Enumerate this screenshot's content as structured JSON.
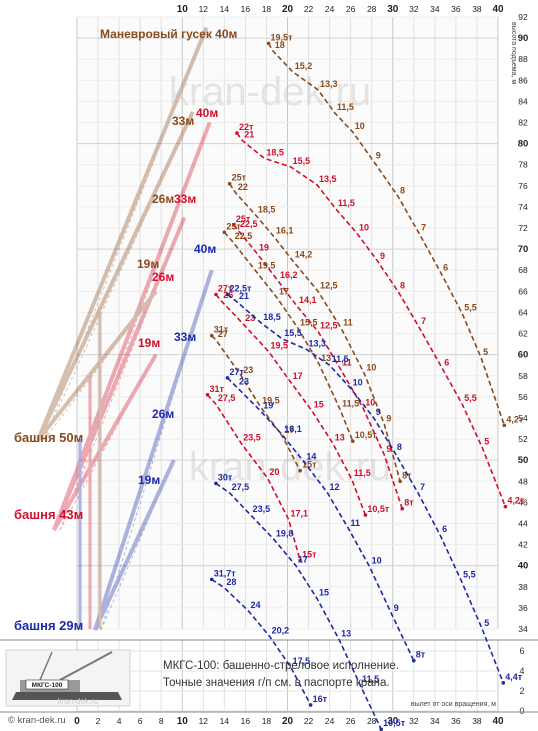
{
  "chart_data": {
    "type": "line",
    "title": "",
    "x_axis": {
      "label": "вылет от оси вращения, м",
      "ticks": [
        0,
        2,
        4,
        6,
        8,
        10,
        12,
        14,
        16,
        18,
        20,
        22,
        24,
        26,
        28,
        30,
        32,
        34,
        36,
        38,
        40
      ],
      "range": [
        0,
        40
      ]
    },
    "y_axis": {
      "label": "высота подъема, м",
      "ticks": [
        34,
        36,
        38,
        40,
        42,
        44,
        46,
        48,
        50,
        52,
        54,
        56,
        58,
        60,
        62,
        64,
        66,
        68,
        70,
        72,
        74,
        76,
        78,
        80,
        82,
        84,
        86,
        88,
        90,
        92
      ],
      "range": [
        34,
        92
      ]
    },
    "lower_axis": {
      "ticks": [
        0,
        2,
        4,
        6
      ]
    },
    "colors": {
      "brown": "#8a4a1c",
      "red": "#d0102a",
      "blue": "#1c2aa6"
    },
    "configs": [
      {
        "label": "Маневровый гусек 40м",
        "color": "brown",
        "points": [
          {
            "x": 18.2,
            "y": 89.5,
            "t": "19,5т"
          },
          {
            "x": 18.6,
            "y": 88.8,
            "t": "18"
          },
          {
            "x": 20.5,
            "y": 86.8,
            "t": "15,2"
          },
          {
            "x": 22.9,
            "y": 85.1,
            "t": "13,3"
          },
          {
            "x": 24.5,
            "y": 82.9,
            "t": "11,5"
          },
          {
            "x": 26.2,
            "y": 81.1,
            "t": "10"
          },
          {
            "x": 28.2,
            "y": 78.3,
            "t": "9"
          },
          {
            "x": 30.5,
            "y": 75.0,
            "t": "8"
          },
          {
            "x": 32.5,
            "y": 71.5,
            "t": "7"
          },
          {
            "x": 34.6,
            "y": 67.7,
            "t": "6"
          },
          {
            "x": 36.6,
            "y": 63.9,
            "t": "5,5"
          },
          {
            "x": 38.4,
            "y": 59.7,
            "t": "5"
          },
          {
            "x": 40.6,
            "y": 53.3,
            "t": "4,2т"
          }
        ]
      },
      {
        "label": "40м",
        "color": "red",
        "points": [
          {
            "x": 15.2,
            "y": 81.0,
            "t": "22т"
          },
          {
            "x": 15.7,
            "y": 80.3,
            "t": "21"
          },
          {
            "x": 17.8,
            "y": 78.6,
            "t": "18,5"
          },
          {
            "x": 20.3,
            "y": 77.8,
            "t": "15,5"
          },
          {
            "x": 22.8,
            "y": 76.1,
            "t": "13,5"
          },
          {
            "x": 24.6,
            "y": 73.8,
            "t": "11,5"
          },
          {
            "x": 26.6,
            "y": 71.5,
            "t": "10"
          },
          {
            "x": 28.6,
            "y": 68.8,
            "t": "9"
          },
          {
            "x": 30.5,
            "y": 66.0,
            "t": "8"
          },
          {
            "x": 32.5,
            "y": 62.6,
            "t": "7"
          },
          {
            "x": 34.7,
            "y": 58.7,
            "t": "6"
          },
          {
            "x": 36.6,
            "y": 55.3,
            "t": "5,5"
          },
          {
            "x": 38.5,
            "y": 51.2,
            "t": "5"
          },
          {
            "x": 40.7,
            "y": 45.6,
            "t": "4,2т"
          }
        ]
      },
      {
        "label": "33м",
        "color": "brown",
        "points": [
          {
            "x": 14.5,
            "y": 76.2,
            "t": "25т"
          },
          {
            "x": 15.1,
            "y": 75.3,
            "t": "22"
          },
          {
            "x": 17.0,
            "y": 73.2,
            "t": "18,5"
          },
          {
            "x": 18.7,
            "y": 71.2,
            "t": "16,1"
          },
          {
            "x": 20.5,
            "y": 68.9,
            "t": "14,2"
          },
          {
            "x": 22.9,
            "y": 66.0,
            "t": "12,5"
          },
          {
            "x": 25.1,
            "y": 62.5,
            "t": "11"
          },
          {
            "x": 27.3,
            "y": 58.2,
            "t": "10"
          },
          {
            "x": 29.2,
            "y": 53.4,
            "t": "9"
          },
          {
            "x": 30.7,
            "y": 48.0,
            "t": "8т"
          }
        ]
      },
      {
        "label": "33м",
        "color": "red",
        "points": [
          {
            "x": 14.9,
            "y": 72.3,
            "t": "25т"
          },
          {
            "x": 15.3,
            "y": 71.8,
            "t": "22,5"
          },
          {
            "x": 17.1,
            "y": 69.6,
            "t": "19"
          },
          {
            "x": 19.1,
            "y": 67.0,
            "t": "16,2"
          },
          {
            "x": 20.9,
            "y": 64.6,
            "t": "14,1"
          },
          {
            "x": 22.9,
            "y": 62.2,
            "t": "12,5"
          },
          {
            "x": 25.0,
            "y": 58.7,
            "t": "11"
          },
          {
            "x": 27.2,
            "y": 54.9,
            "t": "10"
          },
          {
            "x": 29.2,
            "y": 50.5,
            "t": "9"
          },
          {
            "x": 30.9,
            "y": 45.4,
            "t": "8т"
          }
        ]
      },
      {
        "label": "26м",
        "color": "brown",
        "points": [
          {
            "x": 14.0,
            "y": 71.6,
            "t": "25т"
          },
          {
            "x": 14.8,
            "y": 70.7,
            "t": "22,5"
          },
          {
            "x": 17.0,
            "y": 67.9,
            "t": "19,5"
          },
          {
            "x": 19.0,
            "y": 65.4,
            "t": "17"
          },
          {
            "x": 21.0,
            "y": 62.5,
            "t": "15,5"
          },
          {
            "x": 23.0,
            "y": 59.1,
            "t": "13"
          },
          {
            "x": 25.0,
            "y": 54.8,
            "t": "11,5"
          },
          {
            "x": 26.2,
            "y": 51.8,
            "t": "10,5т"
          }
        ]
      },
      {
        "label": "26м",
        "color": "red",
        "points": [
          {
            "x": 13.2,
            "y": 65.7,
            "t": "27т"
          },
          {
            "x": 13.7,
            "y": 65.1,
            "t": "26"
          },
          {
            "x": 15.8,
            "y": 62.9,
            "t": "23"
          },
          {
            "x": 18.2,
            "y": 60.3,
            "t": "19,5"
          },
          {
            "x": 20.3,
            "y": 57.4,
            "t": "17"
          },
          {
            "x": 22.3,
            "y": 54.7,
            "t": "15"
          },
          {
            "x": 24.3,
            "y": 51.6,
            "t": "13"
          },
          {
            "x": 26.1,
            "y": 48.2,
            "t": "11,5"
          },
          {
            "x": 27.4,
            "y": 44.8,
            "t": "10,5т"
          }
        ]
      },
      {
        "label": "19м",
        "color": "brown",
        "points": [
          {
            "x": 12.8,
            "y": 61.8,
            "t": "31т"
          },
          {
            "x": 13.2,
            "y": 61.4,
            "t": "27"
          },
          {
            "x": 15.6,
            "y": 58.0,
            "t": "23"
          },
          {
            "x": 17.4,
            "y": 55.1,
            "t": "19,5"
          },
          {
            "x": 19.5,
            "y": 52.3,
            "t": "17"
          },
          {
            "x": 21.2,
            "y": 49.0,
            "t": "15т"
          }
        ]
      },
      {
        "label": "19м",
        "color": "red",
        "points": [
          {
            "x": 12.4,
            "y": 56.2,
            "t": "31т"
          },
          {
            "x": 13.2,
            "y": 55.3,
            "t": "27,5"
          },
          {
            "x": 15.6,
            "y": 51.6,
            "t": "23,5"
          },
          {
            "x": 18.1,
            "y": 48.3,
            "t": "20"
          },
          {
            "x": 20.1,
            "y": 44.4,
            "t": "17,1"
          },
          {
            "x": 21.2,
            "y": 40.5,
            "t": "15т"
          }
        ]
      },
      {
        "label": "40м",
        "color": "blue",
        "points": [
          {
            "x": 14.3,
            "y": 65.7,
            "t": "22,5т"
          },
          {
            "x": 15.2,
            "y": 65.0,
            "t": "21"
          },
          {
            "x": 17.5,
            "y": 63.0,
            "t": "18,5"
          },
          {
            "x": 19.5,
            "y": 61.5,
            "t": "15,5"
          },
          {
            "x": 21.8,
            "y": 60.5,
            "t": "13,3"
          },
          {
            "x": 24.0,
            "y": 59.0,
            "t": "11,5"
          },
          {
            "x": 26.0,
            "y": 56.8,
            "t": "10"
          },
          {
            "x": 28.2,
            "y": 54.0,
            "t": "9"
          },
          {
            "x": 30.2,
            "y": 50.7,
            "t": "8"
          },
          {
            "x": 32.4,
            "y": 46.9,
            "t": "7"
          },
          {
            "x": 34.5,
            "y": 42.9,
            "t": "6"
          },
          {
            "x": 36.5,
            "y": 38.6,
            "t": "5,5"
          },
          {
            "x": 38.5,
            "y": 34.0,
            "t": "5"
          },
          {
            "x": 40.5,
            "y": 28.9,
            "t": "4,4т"
          }
        ]
      },
      {
        "label": "33м",
        "color": "blue",
        "points": [
          {
            "x": 14.3,
            "y": 57.8,
            "t": "27т"
          },
          {
            "x": 15.2,
            "y": 56.9,
            "t": "23"
          },
          {
            "x": 17.5,
            "y": 54.6,
            "t": "19"
          },
          {
            "x": 19.5,
            "y": 52.4,
            "t": "16,1"
          },
          {
            "x": 21.6,
            "y": 49.8,
            "t": "14"
          },
          {
            "x": 23.8,
            "y": 46.9,
            "t": "12"
          },
          {
            "x": 25.8,
            "y": 43.5,
            "t": "11"
          },
          {
            "x": 27.8,
            "y": 39.9,
            "t": "10"
          },
          {
            "x": 29.9,
            "y": 35.4,
            "t": "9"
          },
          {
            "x": 32.0,
            "y": 31.0,
            "t": "8т"
          }
        ]
      },
      {
        "label": "26м",
        "color": "blue",
        "points": [
          {
            "x": 13.2,
            "y": 47.8,
            "t": "30т"
          },
          {
            "x": 14.5,
            "y": 46.9,
            "t": "27,5"
          },
          {
            "x": 16.5,
            "y": 44.8,
            "t": "23,5"
          },
          {
            "x": 18.7,
            "y": 42.5,
            "t": "19,8"
          },
          {
            "x": 20.8,
            "y": 40.0,
            "t": "17"
          },
          {
            "x": 22.8,
            "y": 36.9,
            "t": "15"
          },
          {
            "x": 24.9,
            "y": 33.0,
            "t": "13"
          },
          {
            "x": 26.9,
            "y": 28.7,
            "t": "11,5"
          },
          {
            "x": 28.9,
            "y": 24.5,
            "t": "10,5т"
          }
        ]
      },
      {
        "label": "19м",
        "color": "blue",
        "points": [
          {
            "x": 12.8,
            "y": 38.7,
            "t": "31,7т"
          },
          {
            "x": 14.0,
            "y": 37.9,
            "t": "28"
          },
          {
            "x": 16.3,
            "y": 35.7,
            "t": "24"
          },
          {
            "x": 18.3,
            "y": 33.3,
            "t": "20,2"
          },
          {
            "x": 20.3,
            "y": 30.4,
            "t": "17,5"
          },
          {
            "x": 22.2,
            "y": 26.8,
            "t": "16т"
          }
        ]
      }
    ],
    "annotations": [
      "башня 50м",
      "башня 43м",
      "башня 29м",
      "Маневровый гусек 40м",
      "40м",
      "33м",
      "26м",
      "19м"
    ]
  },
  "labels": {
    "tower50": "башня 50м",
    "tower43": "башня 43м",
    "tower29": "башня 29м",
    "jib_brown_40": "Маневровый гусек 40м",
    "brown_33": "33м",
    "red_40": "40м",
    "brown_26": "26м",
    "red_33": "33м",
    "brown_19": "19м",
    "red_26": "26м",
    "blue_40": "40м",
    "red_19": "19м",
    "blue_33": "33м",
    "blue_26": "26м",
    "blue_19": "19м"
  },
  "watermark": "kran-dek.ru",
  "footer": {
    "caption_line1": "МКГС-100: башенно-стреловое исполнение.",
    "caption_line2": "Точные значения г/п см. в паспорте крана.",
    "copyright": "© kran-dek.ru",
    "crane_badge": "МКГС-100",
    "crane_site": "kran-dek.ru"
  }
}
